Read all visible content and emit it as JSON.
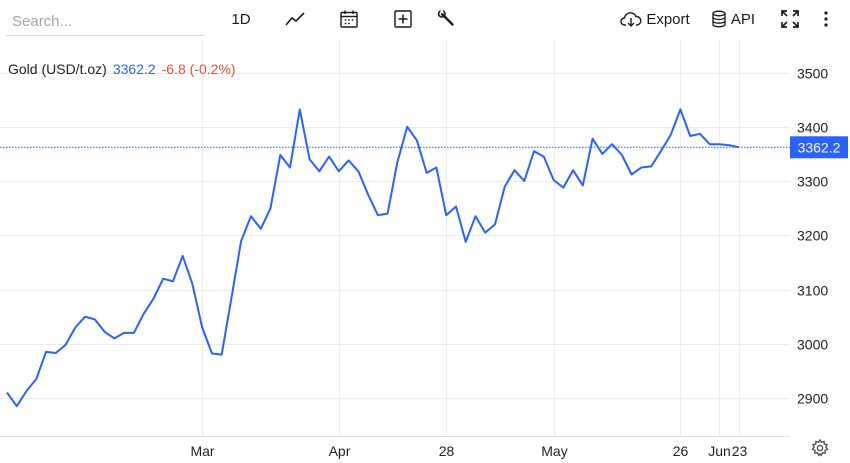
{
  "toolbar": {
    "search_placeholder": "Search...",
    "interval_label": "1D",
    "export_label": "Export",
    "api_label": "API",
    "icons": [
      "line-chart-icon",
      "calendar-icon",
      "add-icon",
      "wrench-icon",
      "cloud-download-icon",
      "database-icon",
      "fullscreen-icon",
      "more-vertical-icon",
      "gear-icon"
    ]
  },
  "header": {
    "instrument": "Gold (USD/t.oz)",
    "last_price": "3362.2",
    "change": "-6.8 (-0.2%)"
  },
  "price_tag": "3362.2",
  "colors": {
    "line": "#2962ff",
    "negative": "#e74c3c",
    "grid": "#ebebeb",
    "label_bg": "#2962ff"
  },
  "chart_data": {
    "type": "line",
    "series": [
      {
        "name": "Gold (USD/t.oz)",
        "values": [
          2910,
          2885,
          2913,
          2935,
          2985,
          2983,
          2998,
          3030,
          3050,
          3045,
          3022,
          3010,
          3020,
          3020,
          3055,
          3083,
          3120,
          3115,
          3162,
          3110,
          3030,
          2982,
          2980,
          3085,
          3190,
          3235,
          3212,
          3250,
          3348,
          3325,
          3432,
          3340,
          3318,
          3345,
          3318,
          3338,
          3318,
          3275,
          3237,
          3240,
          3335,
          3400,
          3375,
          3315,
          3325,
          3237,
          3253,
          3188,
          3235,
          3205,
          3220,
          3290,
          3320,
          3300,
          3355,
          3345,
          3302,
          3288,
          3320,
          3292,
          3378,
          3350,
          3368,
          3348,
          3312,
          3325,
          3327,
          3355,
          3385,
          3432,
          3383,
          3387,
          3368,
          3368,
          3366,
          3362.2
        ]
      }
    ],
    "x_tick_labels": [
      "Mar",
      "Apr",
      "28",
      "May",
      "26",
      "Jun",
      "23"
    ],
    "y_ticks": [
      2900,
      3000,
      3100,
      3200,
      3300,
      3400,
      3500
    ],
    "ylim": [
      2830,
      3560
    ],
    "last_value": 3362.2,
    "grid": true,
    "title": "Gold (USD/t.oz)"
  }
}
